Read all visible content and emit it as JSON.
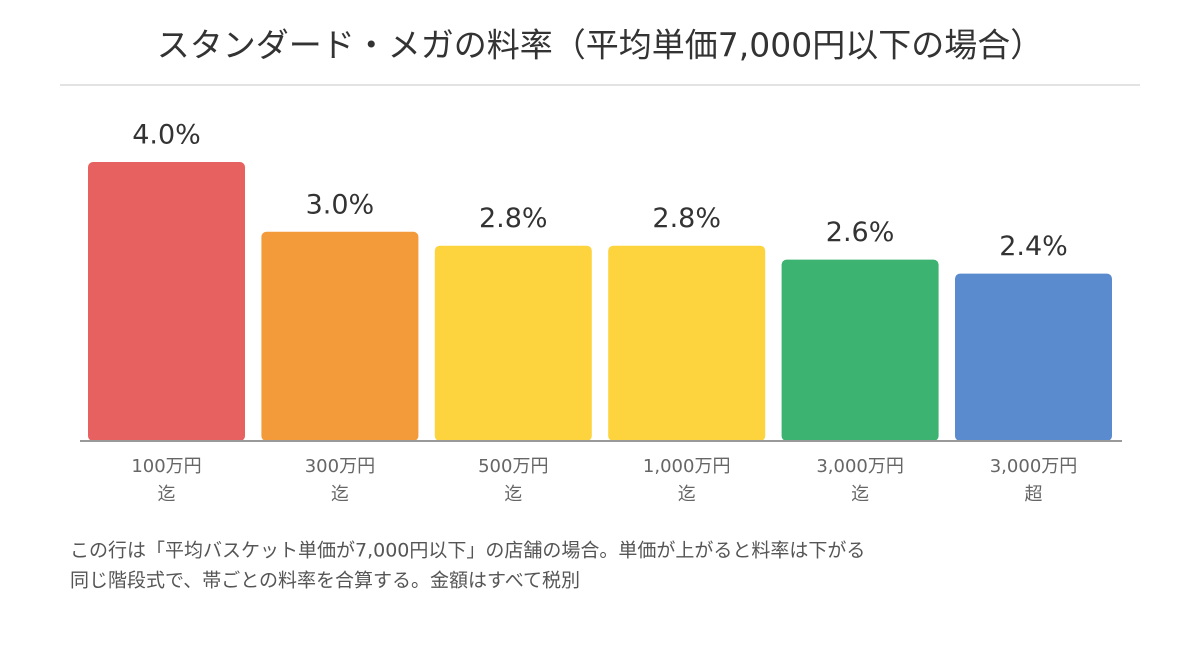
{
  "chart_data": {
    "type": "bar",
    "title": "スタンダード・メガの料率（平均単価7,000円以下の場合）",
    "categories": [
      [
        "100万円",
        "迄"
      ],
      [
        "300万円",
        "迄"
      ],
      [
        "500万円",
        "迄"
      ],
      [
        "1,000万円",
        "迄"
      ],
      [
        "3,000万円",
        "迄"
      ],
      [
        "3,000万円",
        "超"
      ]
    ],
    "values": [
      4.0,
      3.0,
      2.8,
      2.8,
      2.6,
      2.4
    ],
    "value_labels": [
      "4.0%",
      "3.0%",
      "2.8%",
      "2.8%",
      "2.6%",
      "2.4%"
    ],
    "colors": [
      "#e86161",
      "#f39b3a",
      "#fdd43e",
      "#fdd43e",
      "#3cb371",
      "#5b8bcf"
    ],
    "note": [
      "この行は「平均バスケット単価が7,000円以下」の店舗の場合。単価が上がると料率は下がる",
      "同じ階段式で、帯ごとの料率を合算する。金額はすべて税別"
    ]
  }
}
